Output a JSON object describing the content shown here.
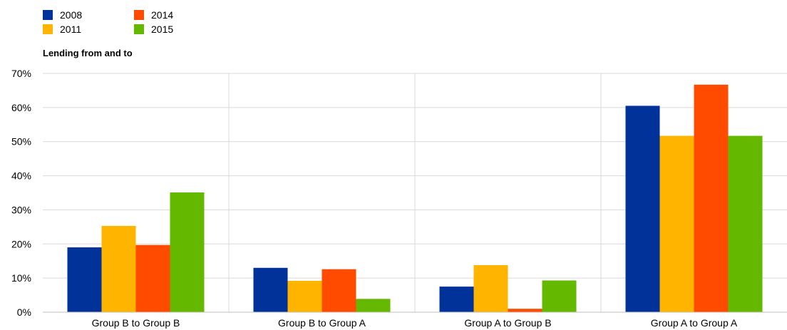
{
  "legend": {
    "items": [
      {
        "label": "2008",
        "color": "#003299"
      },
      {
        "label": "2011",
        "color": "#FFB400"
      },
      {
        "label": "2014",
        "color": "#FF4B00"
      },
      {
        "label": "2015",
        "color": "#65B800"
      }
    ]
  },
  "chart_data": {
    "type": "bar",
    "subtitle": "Lending from and to",
    "categories": [
      "Group B to Group B",
      "Group B to Group A",
      "Group A to Group B",
      "Group A to Group A"
    ],
    "series": [
      {
        "name": "2008",
        "color": "#003299",
        "values": [
          19,
          13,
          7.5,
          60.5
        ]
      },
      {
        "name": "2011",
        "color": "#FFB400",
        "values": [
          25.3,
          9.2,
          13.8,
          51.7
        ]
      },
      {
        "name": "2014",
        "color": "#FF4B00",
        "values": [
          19.7,
          12.6,
          1.0,
          66.7
        ]
      },
      {
        "name": "2015",
        "color": "#65B800",
        "values": [
          35.1,
          3.9,
          9.3,
          51.7
        ]
      }
    ],
    "ylim": [
      0,
      70
    ],
    "yticks": [
      0,
      10,
      20,
      30,
      40,
      50,
      60,
      70
    ],
    "ytick_labels": [
      "0%",
      "10%",
      "20%",
      "30%",
      "40%",
      "50%",
      "60%",
      "70%"
    ],
    "grid": true,
    "legend_position": "top-left"
  }
}
